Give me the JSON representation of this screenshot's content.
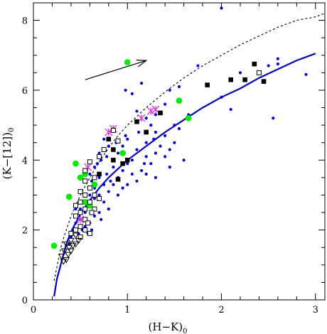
{
  "chart_data": {
    "type": "scatter",
    "title": "",
    "xlabel": "(H−K)",
    "xlabel_sub": "0",
    "ylabel": "(K−[12])",
    "ylabel_sub": "0",
    "xlim": [
      0,
      3.1
    ],
    "ylim": [
      0,
      8.5
    ],
    "xticks": [
      0,
      1,
      2,
      3
    ],
    "yticks": [
      0,
      2,
      4,
      6,
      8
    ],
    "grid": false,
    "colors": {
      "blue_points": "#0000dd",
      "green_points": "#00ee00",
      "magenta_cross": "#dd33dd",
      "black_points": "#000000",
      "curve": "#0000cc",
      "dashed_curve": "#000000"
    },
    "series": [
      {
        "marker": "small-dot",
        "color": "#0000dd",
        "points": [
          [
            2.0,
            8.35
          ],
          [
            1.75,
            6.7
          ],
          [
            2.2,
            6.5
          ],
          [
            2.5,
            6.7
          ],
          [
            2.6,
            6.9
          ],
          [
            2.6,
            6.75
          ],
          [
            2.9,
            6.45
          ],
          [
            2.0,
            5.8
          ],
          [
            2.1,
            5.45
          ],
          [
            2.55,
            5.2
          ],
          [
            1.45,
            6.0
          ],
          [
            1.4,
            5.6
          ],
          [
            1.3,
            5.3
          ],
          [
            1.2,
            5.2
          ],
          [
            1.1,
            5.4
          ],
          [
            1.05,
            5.9
          ],
          [
            0.98,
            6.0
          ],
          [
            1.15,
            6.2
          ],
          [
            1.55,
            6.1
          ],
          [
            1.65,
            5.3
          ],
          [
            1.5,
            5.0
          ],
          [
            1.55,
            4.9
          ],
          [
            1.4,
            4.7
          ],
          [
            1.3,
            4.8
          ],
          [
            1.25,
            5.0
          ],
          [
            1.2,
            4.5
          ],
          [
            1.35,
            4.4
          ],
          [
            1.45,
            4.3
          ],
          [
            1.5,
            4.5
          ],
          [
            1.4,
            4.1
          ],
          [
            1.3,
            4.2
          ],
          [
            1.2,
            4.1
          ],
          [
            1.1,
            4.3
          ],
          [
            1.05,
            4.0
          ],
          [
            1.0,
            4.6
          ],
          [
            0.95,
            4.4
          ],
          [
            0.9,
            4.2
          ],
          [
            0.85,
            4.0
          ],
          [
            0.8,
            4.4
          ],
          [
            0.75,
            4.6
          ],
          [
            0.7,
            4.2
          ],
          [
            0.65,
            3.8
          ],
          [
            0.6,
            3.6
          ],
          [
            0.7,
            3.5
          ],
          [
            0.75,
            3.3
          ],
          [
            0.8,
            3.1
          ],
          [
            0.85,
            3.3
          ],
          [
            0.9,
            3.5
          ],
          [
            0.95,
            3.7
          ],
          [
            1.0,
            3.9
          ],
          [
            1.05,
            3.6
          ],
          [
            1.1,
            3.4
          ],
          [
            1.15,
            3.7
          ],
          [
            1.2,
            3.6
          ],
          [
            1.25,
            3.9
          ],
          [
            1.3,
            3.5
          ],
          [
            0.85,
            3.8
          ],
          [
            0.9,
            3.0
          ],
          [
            0.95,
            3.2
          ],
          [
            1.0,
            3.3
          ],
          [
            0.6,
            3.0
          ],
          [
            0.65,
            3.2
          ],
          [
            0.55,
            2.8
          ],
          [
            0.5,
            2.6
          ],
          [
            0.55,
            2.5
          ],
          [
            0.6,
            2.7
          ],
          [
            0.65,
            2.9
          ],
          [
            0.7,
            3.0
          ],
          [
            0.75,
            2.8
          ],
          [
            0.8,
            2.6
          ],
          [
            0.5,
            2.3
          ],
          [
            0.45,
            2.2
          ],
          [
            0.55,
            2.1
          ],
          [
            0.6,
            2.2
          ],
          [
            0.65,
            2.4
          ],
          [
            0.7,
            2.5
          ],
          [
            0.45,
            2.6
          ],
          [
            0.42,
            2.0
          ],
          [
            0.4,
            1.8
          ],
          [
            0.38,
            1.6
          ],
          [
            0.48,
            1.9
          ],
          [
            0.52,
            2.0
          ],
          [
            0.58,
            1.9
          ],
          [
            0.62,
            2.0
          ],
          [
            0.72,
            2.3
          ],
          [
            0.78,
            3.6
          ],
          [
            0.82,
            3.4
          ],
          [
            0.88,
            4.5
          ],
          [
            1.12,
            4.8
          ],
          [
            1.18,
            3.9
          ],
          [
            1.28,
            4.6
          ],
          [
            1.45,
            3.8
          ],
          [
            1.6,
            4.0
          ],
          [
            0.68,
            3.9
          ],
          [
            0.72,
            4.0
          ],
          [
            0.78,
            4.1
          ],
          [
            0.62,
            3.4
          ],
          [
            0.98,
            4.7
          ]
        ]
      },
      {
        "marker": "green-dot",
        "color": "#00ee00",
        "points": [
          [
            1.0,
            6.8
          ],
          [
            1.55,
            5.7
          ],
          [
            1.65,
            5.2
          ],
          [
            0.45,
            3.9
          ],
          [
            0.55,
            3.6
          ],
          [
            0.5,
            3.5
          ],
          [
            0.38,
            2.95
          ],
          [
            0.65,
            3.3
          ],
          [
            0.55,
            2.8
          ],
          [
            0.6,
            2.7
          ],
          [
            0.22,
            1.55
          ],
          [
            0.95,
            4.2
          ]
        ]
      },
      {
        "marker": "magenta-cross",
        "color": "#dd33dd",
        "points": [
          [
            0.8,
            4.8
          ],
          [
            0.85,
            4.9
          ],
          [
            1.15,
            5.2
          ],
          [
            1.25,
            5.4
          ],
          [
            1.3,
            5.45
          ],
          [
            0.58,
            3.8
          ],
          [
            0.5,
            2.3
          ]
        ]
      },
      {
        "marker": "filled-square",
        "color": "#000000",
        "points": [
          [
            2.35,
            6.75
          ],
          [
            2.25,
            6.3
          ],
          [
            2.1,
            6.3
          ],
          [
            2.45,
            6.25
          ],
          [
            1.85,
            6.15
          ],
          [
            1.1,
            5.1
          ],
          [
            1.35,
            5.35
          ],
          [
            1.2,
            4.8
          ],
          [
            0.8,
            4.6
          ],
          [
            0.85,
            4.3
          ],
          [
            0.95,
            3.9
          ],
          [
            1.0,
            4.0
          ],
          [
            0.9,
            3.45
          ],
          [
            0.7,
            3.6
          ],
          [
            0.85,
            4.0
          ]
        ]
      },
      {
        "marker": "open-square",
        "color": "#000000",
        "points": [
          [
            2.4,
            6.5
          ],
          [
            0.85,
            4.85
          ],
          [
            0.9,
            4.55
          ],
          [
            0.75,
            4.3
          ],
          [
            0.7,
            4.1
          ],
          [
            0.6,
            3.95
          ],
          [
            0.55,
            3.7
          ],
          [
            0.65,
            3.5
          ],
          [
            0.55,
            3.4
          ],
          [
            0.6,
            3.2
          ],
          [
            0.5,
            3.1
          ],
          [
            0.55,
            3.0
          ],
          [
            0.6,
            2.8
          ],
          [
            0.65,
            2.6
          ],
          [
            0.5,
            2.8
          ],
          [
            0.45,
            2.7
          ],
          [
            0.5,
            2.5
          ],
          [
            0.55,
            2.3
          ],
          [
            0.45,
            2.4
          ],
          [
            0.5,
            2.1
          ],
          [
            0.55,
            2.0
          ],
          [
            0.6,
            1.9
          ],
          [
            0.45,
            2.0
          ],
          [
            0.4,
            1.9
          ],
          [
            0.5,
            1.8
          ],
          [
            0.55,
            2.6
          ],
          [
            0.65,
            3.0
          ],
          [
            0.7,
            2.9
          ],
          [
            0.62,
            2.5
          ],
          [
            0.58,
            2.2
          ]
        ]
      },
      {
        "marker": "open-triangle",
        "color": "#000000",
        "points": [
          [
            0.45,
            1.85
          ],
          [
            0.4,
            1.7
          ],
          [
            0.35,
            1.6
          ],
          [
            0.38,
            1.5
          ],
          [
            0.42,
            1.55
          ],
          [
            0.33,
            1.4
          ],
          [
            0.37,
            1.3
          ],
          [
            0.3,
            1.25
          ],
          [
            0.35,
            1.15
          ],
          [
            0.32,
            1.1
          ],
          [
            0.45,
            1.6
          ],
          [
            0.48,
            1.7
          ],
          [
            0.4,
            1.4
          ]
        ]
      }
    ],
    "curves": [
      {
        "style": "solid",
        "color": "#0000cc",
        "x": [
          0.22,
          0.25,
          0.3,
          0.35,
          0.4,
          0.5,
          0.6,
          0.7,
          0.8,
          0.9,
          1.0,
          1.2,
          1.4,
          1.6,
          1.8,
          2.0,
          2.2,
          2.4,
          2.6,
          2.8,
          3.0
        ],
        "y": [
          0.1,
          0.6,
          1.1,
          1.6,
          1.95,
          2.45,
          2.85,
          3.2,
          3.5,
          3.75,
          4.0,
          4.4,
          4.8,
          5.15,
          5.5,
          5.8,
          6.05,
          6.35,
          6.6,
          6.85,
          7.05
        ]
      },
      {
        "style": "dashed",
        "color": "#000000",
        "x": [
          0.22,
          0.3,
          0.4,
          0.5,
          0.6,
          0.7,
          0.8,
          0.9,
          1.0,
          1.2,
          1.4,
          1.6,
          1.8,
          2.0,
          2.2,
          2.4,
          2.6,
          2.8,
          3.0,
          3.1
        ],
        "y": [
          0.55,
          1.6,
          2.4,
          3.0,
          3.5,
          3.95,
          4.35,
          4.7,
          5.0,
          5.5,
          5.95,
          6.35,
          6.7,
          7.0,
          7.3,
          7.55,
          7.8,
          8.0,
          8.1,
          8.2
        ]
      }
    ],
    "arrow": {
      "from": [
        0.55,
        6.3
      ],
      "to": [
        1.2,
        6.85
      ],
      "color": "#000000"
    }
  }
}
